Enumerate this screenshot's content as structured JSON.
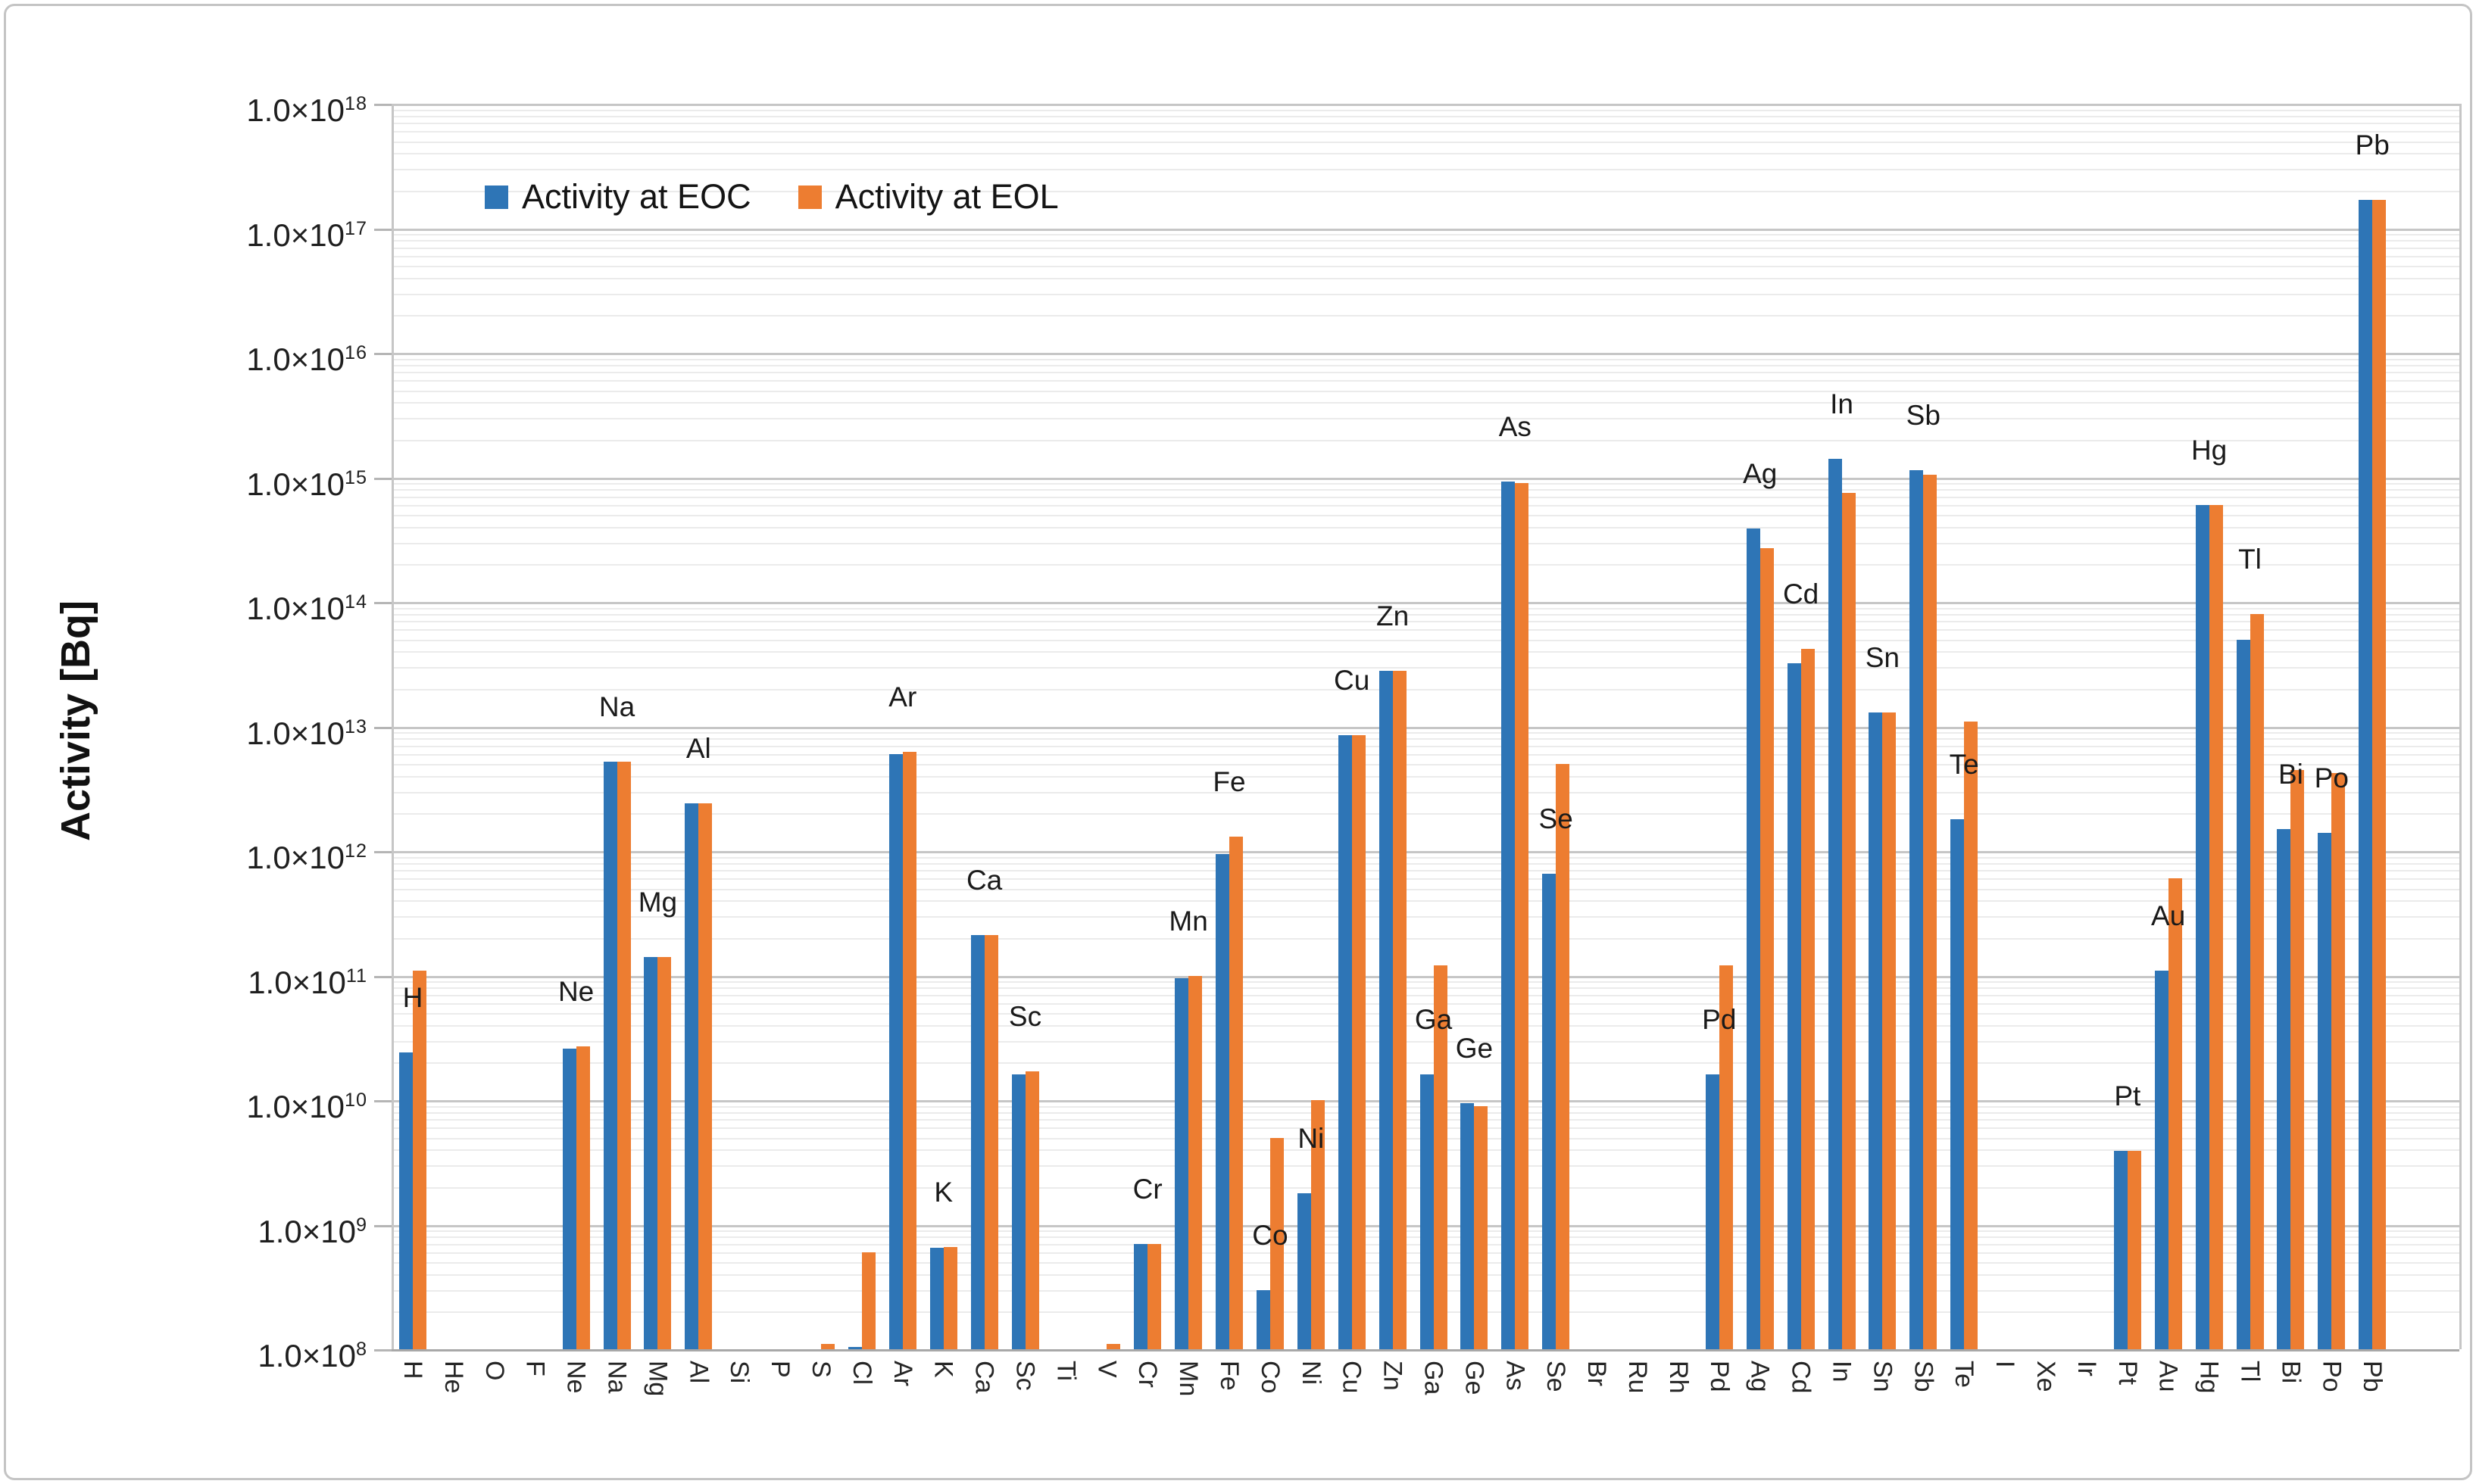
{
  "figure": {
    "background": "#FFFFFF",
    "border_color": "#C4C4C4"
  },
  "legend": {
    "items": [
      {
        "label": "Activity at EOC",
        "color": "#2E75B6"
      },
      {
        "label": "Activity at EOL",
        "color": "#ED7D31"
      }
    ]
  },
  "y_axis": {
    "title": "Activity [Bq]",
    "scale": "log",
    "ticks": [
      {
        "mantissa": "1.0×10",
        "exponent": "18"
      },
      {
        "mantissa": "1.0×10",
        "exponent": "17"
      },
      {
        "mantissa": "1.0×10",
        "exponent": "16"
      },
      {
        "mantissa": "1.0×10",
        "exponent": "15"
      },
      {
        "mantissa": "1.0×10",
        "exponent": "14"
      },
      {
        "mantissa": "1.0×10",
        "exponent": "13"
      },
      {
        "mantissa": "1.0×10",
        "exponent": "12"
      },
      {
        "mantissa": "1.0×10",
        "exponent": "11"
      },
      {
        "mantissa": "1.0×10",
        "exponent": "10"
      },
      {
        "mantissa": "1.0×10",
        "exponent": "9"
      },
      {
        "mantissa": "1.0×10",
        "exponent": "8"
      }
    ]
  },
  "chart_data": {
    "type": "bar",
    "title": "",
    "xlabel": "",
    "ylabel": "Activity [Bq]",
    "yscale": "log",
    "ylim": [
      100000000.0,
      1e+18
    ],
    "grid": "major and minor log gridlines, horizontal",
    "legend_position": "top-left inside plot",
    "categories": [
      "H",
      "He",
      "O",
      "F",
      "Ne",
      "Na",
      "Mg",
      "Al",
      "Si",
      "P",
      "S",
      "Cl",
      "Ar",
      "K",
      "Ca",
      "Sc",
      "Ti",
      "V",
      "Cr",
      "Mn",
      "Fe",
      "Co",
      "Ni",
      "Cu",
      "Zn",
      "Ga",
      "Ge",
      "As",
      "Se",
      "Br",
      "Ru",
      "Rh",
      "Pd",
      "Ag",
      "Cd",
      "In",
      "Sn",
      "Sb",
      "Te",
      "I",
      "Xe",
      "Ir",
      "Pt",
      "Au",
      "Hg",
      "Tl",
      "Bi",
      "Po",
      "Pb"
    ],
    "series": [
      {
        "name": "Activity at EOC",
        "color": "#2E75B6",
        "values": [
          24000000000.0,
          null,
          null,
          null,
          26000000000.0,
          5200000000000.0,
          140000000000.0,
          2400000000000.0,
          null,
          null,
          null,
          105000000.0,
          6000000000000.0,
          650000000.0,
          210000000000.0,
          16000000000.0,
          null,
          null,
          700000000.0,
          95000000000.0,
          950000000000.0,
          300000000.0,
          1800000000.0,
          8500000000000.0,
          28000000000000.0,
          16000000000.0,
          9500000000.0,
          930000000000000.0,
          660000000000.0,
          null,
          null,
          null,
          16000000000.0,
          390000000000000.0,
          32000000000000.0,
          1400000000000000.0,
          13000000000000.0,
          1150000000000000.0,
          1800000000000.0,
          null,
          null,
          null,
          3900000000.0,
          110000000000.0,
          600000000000000.0,
          50000000000000.0,
          1500000000000.0,
          1400000000000.0,
          1.7e+17
        ]
      },
      {
        "name": "Activity at EOL",
        "color": "#ED7D31",
        "values": [
          110000000000.0,
          null,
          null,
          null,
          27000000000.0,
          5200000000000.0,
          140000000000.0,
          2400000000000.0,
          null,
          null,
          110000000.0,
          600000000.0,
          6300000000000.0,
          660000000.0,
          210000000000.0,
          17000000000.0,
          null,
          110000000.0,
          700000000.0,
          100000000000.0,
          1300000000000.0,
          5000000000.0,
          10000000000.0,
          8500000000000.0,
          28000000000000.0,
          120000000000.0,
          9000000000.0,
          900000000000000.0,
          5000000000000.0,
          null,
          null,
          null,
          120000000000.0,
          270000000000000.0,
          42000000000000.0,
          750000000000000.0,
          13000000000000.0,
          1050000000000000.0,
          11000000000000.0,
          null,
          null,
          null,
          3900000000.0,
          600000000000.0,
          600000000000000.0,
          80000000000000.0,
          4500000000000.0,
          4200000000000.0,
          1.7e+17
        ]
      }
    ],
    "bar_labels": [
      {
        "text": "H",
        "index": 0,
        "anchor": "eoc"
      },
      {
        "text": "Ne",
        "index": 4,
        "anchor": "max"
      },
      {
        "text": "Na",
        "index": 5,
        "anchor": "max"
      },
      {
        "text": "Mg",
        "index": 6,
        "anchor": "max"
      },
      {
        "text": "Al",
        "index": 7,
        "anchor": "max"
      },
      {
        "text": "Ar",
        "index": 12,
        "anchor": "max"
      },
      {
        "text": "K",
        "index": 13,
        "anchor": "max"
      },
      {
        "text": "Ca",
        "index": 14,
        "anchor": "max"
      },
      {
        "text": "Sc",
        "index": 15,
        "anchor": "max"
      },
      {
        "text": "Cr",
        "index": 18,
        "anchor": "max"
      },
      {
        "text": "Mn",
        "index": 19,
        "anchor": "max"
      },
      {
        "text": "Fe",
        "index": 20,
        "anchor": "max"
      },
      {
        "text": "Co",
        "index": 21,
        "anchor": "eoc"
      },
      {
        "text": "Ni",
        "index": 22,
        "anchor": "eoc"
      },
      {
        "text": "Cu",
        "index": 23,
        "anchor": "max"
      },
      {
        "text": "Zn",
        "index": 24,
        "anchor": "max"
      },
      {
        "text": "Ga",
        "index": 25,
        "anchor": "eoc"
      },
      {
        "text": "Ge",
        "index": 26,
        "anchor": "max"
      },
      {
        "text": "As",
        "index": 27,
        "anchor": "max"
      },
      {
        "text": "Se",
        "index": 28,
        "anchor": "eoc"
      },
      {
        "text": "Pd",
        "index": 32,
        "anchor": "eoc"
      },
      {
        "text": "Ag",
        "index": 33,
        "anchor": "max"
      },
      {
        "text": "Cd",
        "index": 34,
        "anchor": "max"
      },
      {
        "text": "In",
        "index": 35,
        "anchor": "max"
      },
      {
        "text": "Sn",
        "index": 36,
        "anchor": "max"
      },
      {
        "text": "Sb",
        "index": 37,
        "anchor": "max"
      },
      {
        "text": "Te",
        "index": 38,
        "anchor": "eoc"
      },
      {
        "text": "Pt",
        "index": 42,
        "anchor": "max"
      },
      {
        "text": "Au",
        "index": 43,
        "anchor": "eoc"
      },
      {
        "text": "Hg",
        "index": 44,
        "anchor": "max"
      },
      {
        "text": "Tl",
        "index": 45,
        "anchor": "max"
      },
      {
        "text": "Bi",
        "index": 46,
        "anchor": "eoc"
      },
      {
        "text": "Po",
        "index": 47,
        "anchor": "eoc"
      },
      {
        "text": "Pb",
        "index": 48,
        "anchor": "max"
      }
    ]
  }
}
